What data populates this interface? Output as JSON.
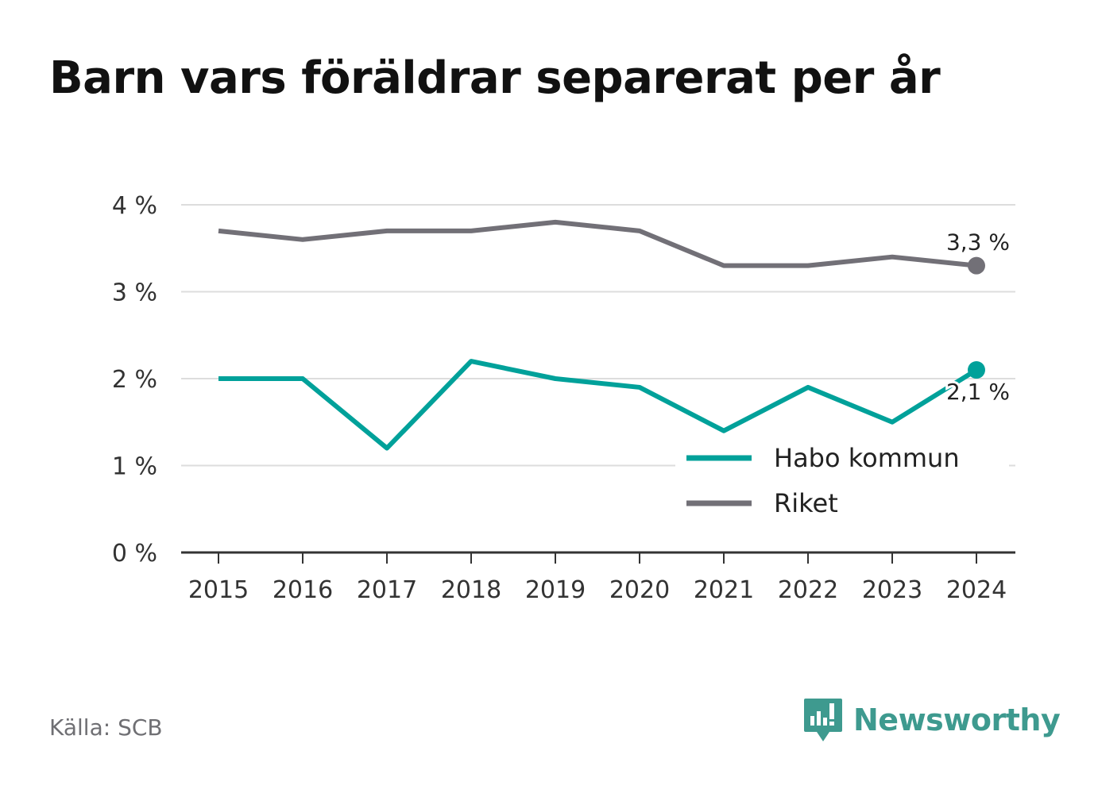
{
  "title": "Barn vars föräldrar separerat per år",
  "source": "Källa: SCB",
  "brand": {
    "name": "Newsworthy",
    "icon": "newsworthy-logo-icon",
    "color": "#3e9a8f"
  },
  "chart_data": {
    "type": "line",
    "title": "Barn vars föräldrar separerat per år",
    "x": [
      "2015",
      "2016",
      "2017",
      "2018",
      "2019",
      "2020",
      "2021",
      "2022",
      "2023",
      "2024"
    ],
    "yticks": [
      "0 %",
      "1 %",
      "2 %",
      "3 %",
      "4 %"
    ],
    "ylim": [
      0,
      4
    ],
    "grid": true,
    "legend_position": "bottom-right",
    "series": [
      {
        "name": "Habo kommun",
        "color": "#00a19a",
        "values": [
          2.0,
          2.0,
          1.2,
          2.2,
          2.0,
          1.9,
          1.4,
          1.9,
          1.5,
          2.1
        ],
        "end_label": "2,1 %"
      },
      {
        "name": "Riket",
        "color": "#727077",
        "values": [
          3.7,
          3.6,
          3.7,
          3.7,
          3.8,
          3.7,
          3.3,
          3.3,
          3.4,
          3.3
        ],
        "end_label": "3,3 %"
      }
    ]
  }
}
